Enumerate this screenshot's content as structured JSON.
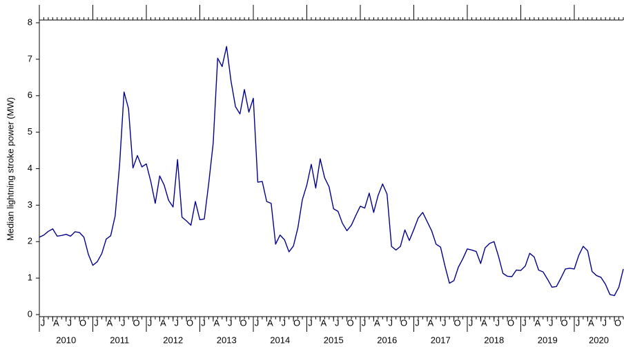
{
  "chart_data": {
    "type": "line",
    "y_label": "Median lightning stroke power (MW)",
    "x": [
      "2010-01",
      "2010-02",
      "2010-03",
      "2010-04",
      "2010-05",
      "2010-06",
      "2010-07",
      "2010-08",
      "2010-09",
      "2010-10",
      "2010-11",
      "2010-12",
      "2011-01",
      "2011-02",
      "2011-03",
      "2011-04",
      "2011-05",
      "2011-06",
      "2011-07",
      "2011-08",
      "2011-09",
      "2011-10",
      "2011-11",
      "2011-12",
      "2012-01",
      "2012-02",
      "2012-03",
      "2012-04",
      "2012-05",
      "2012-06",
      "2012-07",
      "2012-08",
      "2012-09",
      "2012-10",
      "2012-11",
      "2012-12",
      "2013-01",
      "2013-02",
      "2013-03",
      "2013-04",
      "2013-05",
      "2013-06",
      "2013-07",
      "2013-08",
      "2013-09",
      "2013-10",
      "2013-11",
      "2013-12",
      "2014-01",
      "2014-02",
      "2014-03",
      "2014-04",
      "2014-05",
      "2014-06",
      "2014-07",
      "2014-08",
      "2014-09",
      "2014-10",
      "2014-11",
      "2014-12",
      "2015-01",
      "2015-02",
      "2015-03",
      "2015-04",
      "2015-05",
      "2015-06",
      "2015-07",
      "2015-08",
      "2015-09",
      "2015-10",
      "2015-11",
      "2015-12",
      "2016-01",
      "2016-02",
      "2016-03",
      "2016-04",
      "2016-05",
      "2016-06",
      "2016-07",
      "2016-08",
      "2016-09",
      "2016-10",
      "2016-11",
      "2016-12",
      "2017-01",
      "2017-02",
      "2017-03",
      "2017-04",
      "2017-05",
      "2017-06",
      "2017-07",
      "2017-08",
      "2017-09",
      "2017-10",
      "2017-11",
      "2017-12",
      "2018-01",
      "2018-02",
      "2018-03",
      "2018-04",
      "2018-05",
      "2018-06",
      "2018-07",
      "2018-08",
      "2018-09",
      "2018-10",
      "2018-11",
      "2018-12",
      "2019-01",
      "2019-02",
      "2019-03",
      "2019-04",
      "2019-05",
      "2019-06",
      "2019-07",
      "2019-08",
      "2019-09",
      "2019-10",
      "2019-11",
      "2019-12",
      "2020-01",
      "2020-02",
      "2020-03",
      "2020-04",
      "2020-05",
      "2020-06",
      "2020-07",
      "2020-08",
      "2020-09",
      "2020-10",
      "2020-11",
      "2020-12"
    ],
    "series": [
      {
        "color": "#00008b",
        "values": [
          2.12,
          2.18,
          2.28,
          2.35,
          2.15,
          2.17,
          2.2,
          2.15,
          2.27,
          2.25,
          2.12,
          1.65,
          1.35,
          1.45,
          1.67,
          2.07,
          2.16,
          2.7,
          4.1,
          6.1,
          5.65,
          4.02,
          4.36,
          4.05,
          4.13,
          3.65,
          3.05,
          3.8,
          3.55,
          3.13,
          2.95,
          4.25,
          2.67,
          2.57,
          2.45,
          3.1,
          2.6,
          2.62,
          3.6,
          4.7,
          7.03,
          6.8,
          7.35,
          6.4,
          5.7,
          5.5,
          6.17,
          5.55,
          5.93,
          3.63,
          3.65,
          3.1,
          3.05,
          1.93,
          2.18,
          2.05,
          1.72,
          1.88,
          2.38,
          3.15,
          3.55,
          4.12,
          3.47,
          4.27,
          3.75,
          3.5,
          2.9,
          2.83,
          2.5,
          2.3,
          2.45,
          2.72,
          2.97,
          2.92,
          3.33,
          2.8,
          3.27,
          3.58,
          3.3,
          1.87,
          1.77,
          1.87,
          2.32,
          2.03,
          2.33,
          2.65,
          2.8,
          2.55,
          2.3,
          1.93,
          1.85,
          1.33,
          0.86,
          0.93,
          1.3,
          1.53,
          1.8,
          1.77,
          1.73,
          1.4,
          1.83,
          1.95,
          2.0,
          1.6,
          1.13,
          1.05,
          1.04,
          1.22,
          1.21,
          1.33,
          1.68,
          1.58,
          1.22,
          1.17,
          0.97,
          0.75,
          0.77,
          1.0,
          1.25,
          1.27,
          1.25,
          1.62,
          1.87,
          1.75,
          1.18,
          1.07,
          1.02,
          0.83,
          0.55,
          0.52,
          0.75,
          1.25
        ]
      }
    ],
    "xticks": [
      {
        "value": "2010-01",
        "label": "J"
      },
      {
        "value": "2010-04",
        "label": "A"
      },
      {
        "value": "2010-07",
        "label": "J"
      },
      {
        "value": "2010-10",
        "label": "O"
      },
      {
        "value": "2011-01",
        "label": "J"
      },
      {
        "value": "2011-04",
        "label": "A"
      },
      {
        "value": "2011-07",
        "label": "J"
      },
      {
        "value": "2011-10",
        "label": "O"
      },
      {
        "value": "2012-01",
        "label": "J"
      },
      {
        "value": "2012-04",
        "label": "A"
      },
      {
        "value": "2012-07",
        "label": "J"
      },
      {
        "value": "2012-10",
        "label": "O"
      },
      {
        "value": "2013-01",
        "label": "J"
      },
      {
        "value": "2013-04",
        "label": "A"
      },
      {
        "value": "2013-07",
        "label": "J"
      },
      {
        "value": "2013-10",
        "label": "O"
      },
      {
        "value": "2014-01",
        "label": "J"
      },
      {
        "value": "2014-04",
        "label": "A"
      },
      {
        "value": "2014-07",
        "label": "J"
      },
      {
        "value": "2014-10",
        "label": "O"
      },
      {
        "value": "2015-01",
        "label": "J"
      },
      {
        "value": "2015-04",
        "label": "A"
      },
      {
        "value": "2015-07",
        "label": "J"
      },
      {
        "value": "2015-10",
        "label": "O"
      },
      {
        "value": "2016-01",
        "label": "J"
      },
      {
        "value": "2016-04",
        "label": "A"
      },
      {
        "value": "2016-07",
        "label": "J"
      },
      {
        "value": "2016-10",
        "label": "O"
      },
      {
        "value": "2017-01",
        "label": "J"
      },
      {
        "value": "2017-04",
        "label": "A"
      },
      {
        "value": "2017-07",
        "label": "J"
      },
      {
        "value": "2017-10",
        "label": "O"
      },
      {
        "value": "2018-01",
        "label": "J"
      },
      {
        "value": "2018-04",
        "label": "A"
      },
      {
        "value": "2018-07",
        "label": "J"
      },
      {
        "value": "2018-10",
        "label": "O"
      },
      {
        "value": "2019-01",
        "label": "J"
      },
      {
        "value": "2019-04",
        "label": "A"
      },
      {
        "value": "2019-07",
        "label": "J"
      },
      {
        "value": "2019-10",
        "label": "O"
      },
      {
        "value": "2020-01",
        "label": "J"
      },
      {
        "value": "2020-04",
        "label": "A"
      },
      {
        "value": "2020-07",
        "label": "J"
      },
      {
        "value": "2020-10",
        "label": "O"
      }
    ],
    "year_labels": [
      "2010",
      "2011",
      "2012",
      "2013",
      "2014",
      "2015",
      "2016",
      "2017",
      "2018",
      "2019",
      "2020"
    ],
    "ylim": [
      0,
      8
    ],
    "yticks": [
      0,
      1,
      2,
      3,
      4,
      5,
      6,
      7,
      8
    ],
    "grid": false
  }
}
